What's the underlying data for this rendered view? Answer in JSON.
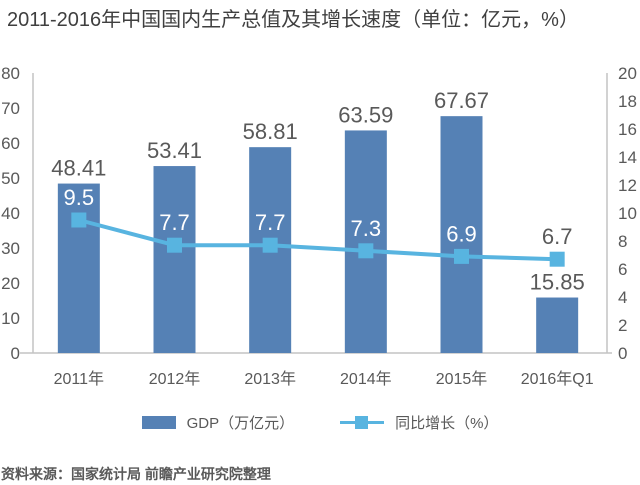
{
  "title": "2011-2016年中国国内生产总值及其增长速度（单位：亿元，%）",
  "source": "资料来源：国家统计局 前瞻产业研究院整理",
  "legend": {
    "gdp": "GDP（万亿元）",
    "growth": "同比增长（%）"
  },
  "colors": {
    "bar": "#5581B5",
    "line": "#58B4E0",
    "axis_line": "#C3C3C3",
    "tick_label": "#595959",
    "data_label": "#595959",
    "data_label_inside": "#FFFFFF",
    "title_text": "#3F3F3F"
  },
  "chart_data": {
    "type": "bar",
    "subtype": "bar+line dual-axis",
    "title": "2011-2016年中国国内生产总值及其增长速度（单位：亿元，%）",
    "categories": [
      "2011年",
      "2012年",
      "2013年",
      "2014年",
      "2015年",
      "2016年Q1"
    ],
    "series": [
      {
        "name": "GDP（万亿元）",
        "type": "bar",
        "axis": "left",
        "values": [
          48.41,
          53.41,
          58.81,
          63.59,
          67.67,
          15.85
        ],
        "label_decimals": 2
      },
      {
        "name": "同比增长（%）",
        "type": "line",
        "axis": "right",
        "values": [
          9.5,
          7.7,
          7.7,
          7.3,
          6.9,
          6.7
        ],
        "label_decimals": 1
      }
    ],
    "left_axis": {
      "min": 0,
      "max": 80,
      "ticks": [
        0,
        10,
        20,
        30,
        40,
        50,
        60,
        70,
        80
      ]
    },
    "right_axis": {
      "min": 0,
      "max": 20,
      "ticks": [
        0,
        2,
        4,
        6,
        8,
        10,
        12,
        14,
        16,
        18,
        20
      ]
    },
    "xlabel": "",
    "ylabel_left": "",
    "ylabel_right": "",
    "grid": false,
    "legend_position": "bottom"
  }
}
